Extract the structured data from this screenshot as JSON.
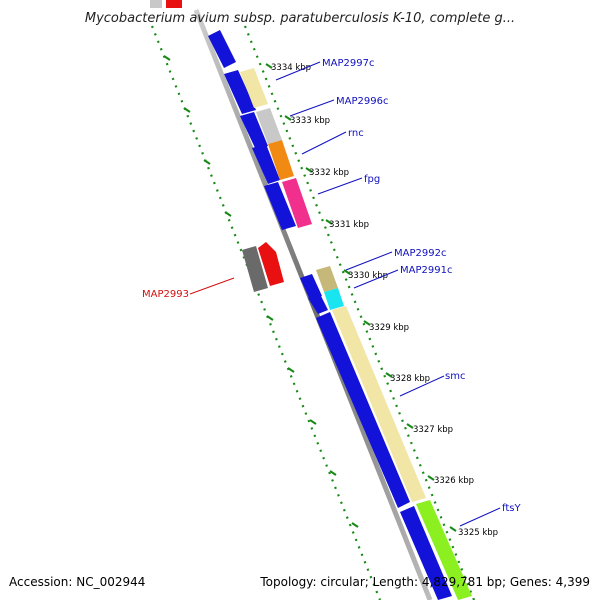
{
  "title": "Mycobacterium avium subsp. paratuberculosis K-10, complete g...",
  "footer": {
    "accession": "Accession: NC_002944",
    "summary": "Topology: circular; Length: 4,829,781 bp; Genes: 4,399"
  },
  "colors": {
    "backbone": "#7f7f7f",
    "tick_dots": "#178a17",
    "forward_blue": "#1111e0",
    "label_forward": "#1010c0",
    "label_reverse": "#d21010"
  },
  "ticks": [
    {
      "label": "3334 kbp"
    },
    {
      "label": "3333 kbp"
    },
    {
      "label": "3332 kbp"
    },
    {
      "label": "3331 kbp"
    },
    {
      "label": "3330 kbp"
    },
    {
      "label": "3329 kbp"
    },
    {
      "label": "3328 kbp"
    },
    {
      "label": "3327 kbp"
    },
    {
      "label": "3326 kbp"
    },
    {
      "label": "3325 kbp"
    }
  ],
  "gene_labels": [
    {
      "text": "MAP2997c"
    },
    {
      "text": "MAP2996c"
    },
    {
      "text": "rnc"
    },
    {
      "text": "fpg"
    },
    {
      "text": "MAP2992c"
    },
    {
      "text": "MAP2991c"
    },
    {
      "text": "smc"
    },
    {
      "text": "ftsY"
    },
    {
      "text": "MAP2993"
    }
  ]
}
